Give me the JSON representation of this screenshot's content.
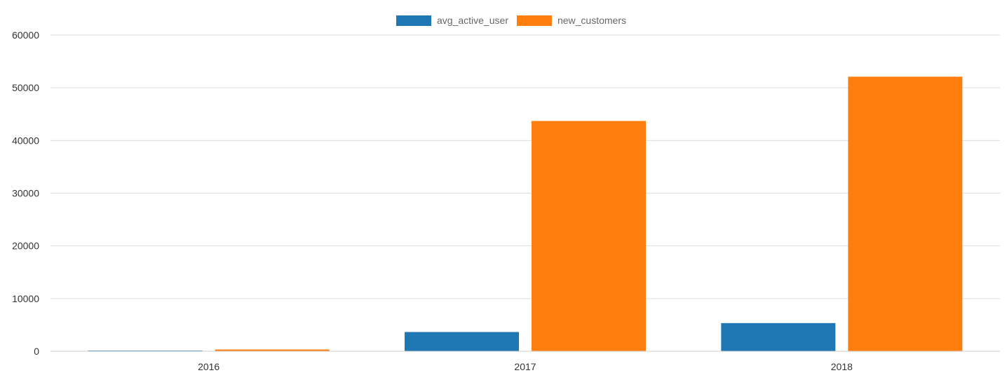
{
  "chart_data": {
    "type": "bar",
    "categories": [
      "2016",
      "2017",
      "2018"
    ],
    "series": [
      {
        "name": "avg_active_user",
        "values": [
          120,
          3650,
          5340
        ],
        "color": "#1f77b4"
      },
      {
        "name": "new_customers",
        "values": [
          330,
          43700,
          52100
        ],
        "color": "#ff7f0e"
      }
    ],
    "ylim": [
      0,
      60000
    ],
    "yticks": [
      0,
      10000,
      20000,
      30000,
      40000,
      50000,
      60000
    ],
    "ytick_labels": [
      "0",
      "10000",
      "20000",
      "30000",
      "40000",
      "50000",
      "60000"
    ],
    "xlabel": "",
    "ylabel": "",
    "title": "",
    "grid": true,
    "legend_position": "top-center"
  }
}
